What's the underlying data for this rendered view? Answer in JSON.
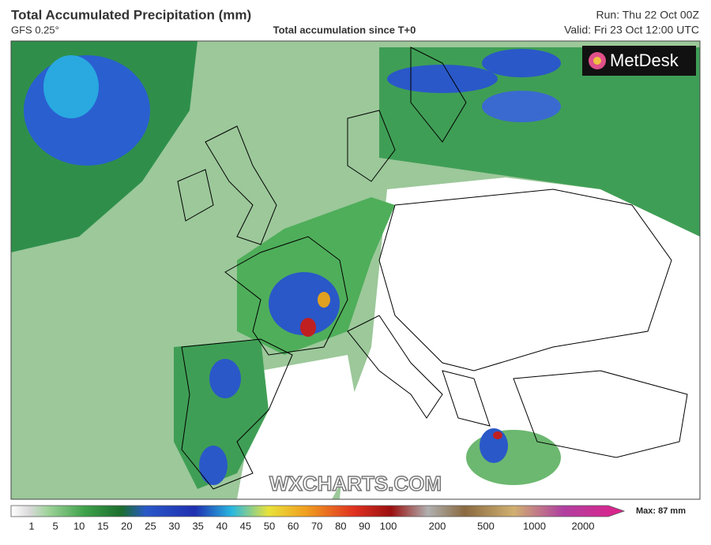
{
  "header": {
    "title": "Total Accumulated Precipitation (mm)",
    "model": "GFS 0.25°",
    "subtitle": "Total accumulation since T+0",
    "run": "Run: Thu 22 Oct 00Z",
    "valid": "Valid: Fri 23 Oct 12:00 UTC"
  },
  "map": {
    "logo": "MetDesk",
    "watermark": "WXCHARTS.COM"
  },
  "legend": {
    "ticks": [
      1,
      5,
      10,
      15,
      20,
      25,
      30,
      35,
      40,
      45,
      50,
      60,
      70,
      80,
      90,
      100,
      200,
      500,
      1000,
      2000
    ],
    "max": "Max: 87 mm"
  }
}
